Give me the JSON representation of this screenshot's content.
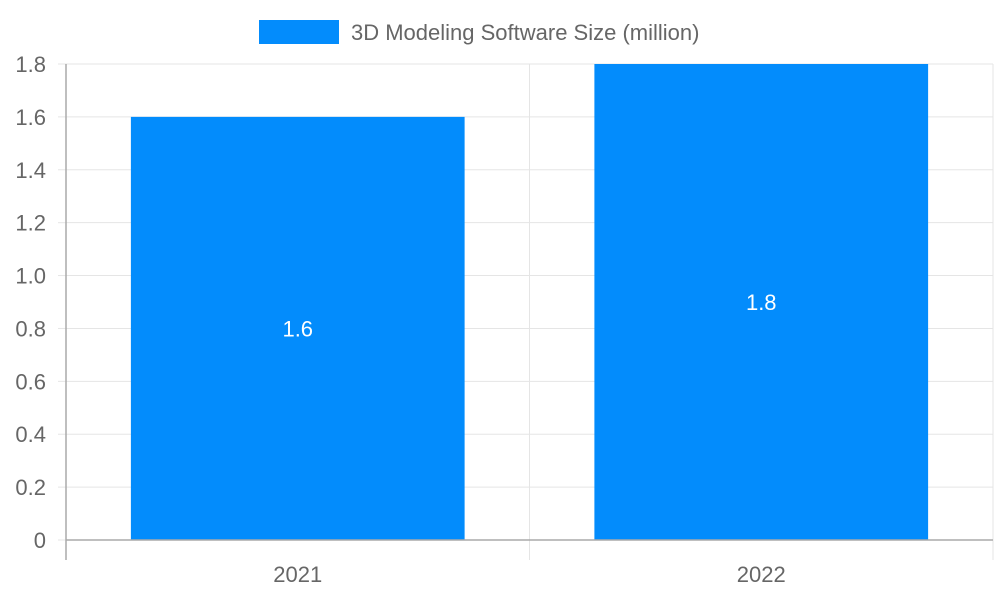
{
  "chart_data": {
    "type": "bar",
    "title": "",
    "xlabel": "",
    "ylabel": "",
    "categories": [
      "2021",
      "2022"
    ],
    "series": [
      {
        "name": "3D Modeling Software Size (million)",
        "values": [
          1.6,
          1.8
        ],
        "color": "#038cfc"
      }
    ],
    "data_labels": [
      "1.6",
      "1.8"
    ],
    "ylim": [
      0,
      1.8
    ],
    "y_ticks": [
      "0",
      "0.2",
      "0.4",
      "0.6",
      "0.8",
      "1.0",
      "1.2",
      "1.4",
      "1.6",
      "1.8"
    ],
    "grid": true,
    "legend_position": "top"
  }
}
